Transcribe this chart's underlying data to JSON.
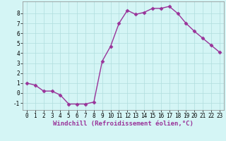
{
  "x": [
    0,
    1,
    2,
    3,
    4,
    5,
    6,
    7,
    8,
    9,
    10,
    11,
    12,
    13,
    14,
    15,
    16,
    17,
    18,
    19,
    20,
    21,
    22,
    23
  ],
  "y": [
    1.0,
    0.8,
    0.2,
    0.2,
    -0.2,
    -1.1,
    -1.1,
    -1.1,
    -0.9,
    3.2,
    4.7,
    7.0,
    8.3,
    7.9,
    8.1,
    8.5,
    8.5,
    8.7,
    8.0,
    7.0,
    6.2,
    5.5,
    4.8,
    4.1
  ],
  "line_color": "#993399",
  "marker": "D",
  "marker_size": 2.5,
  "linewidth": 1.0,
  "xlabel": "Windchill (Refroidissement éolien,°C)",
  "xlabel_fontsize": 6.5,
  "xlabel_color": "#993399",
  "xlim": [
    -0.5,
    23.5
  ],
  "ylim": [
    -1.7,
    9.2
  ],
  "yticks": [
    -1,
    0,
    1,
    2,
    3,
    4,
    5,
    6,
    7,
    8
  ],
  "xticks": [
    0,
    1,
    2,
    3,
    4,
    5,
    6,
    7,
    8,
    9,
    10,
    11,
    12,
    13,
    14,
    15,
    16,
    17,
    18,
    19,
    20,
    21,
    22,
    23
  ],
  "tick_fontsize": 5.5,
  "background_color": "#d4f5f5",
  "grid_color": "#b0dede",
  "grid_linewidth": 0.5,
  "spine_color": "#888888",
  "axis_label_color": "#993399"
}
